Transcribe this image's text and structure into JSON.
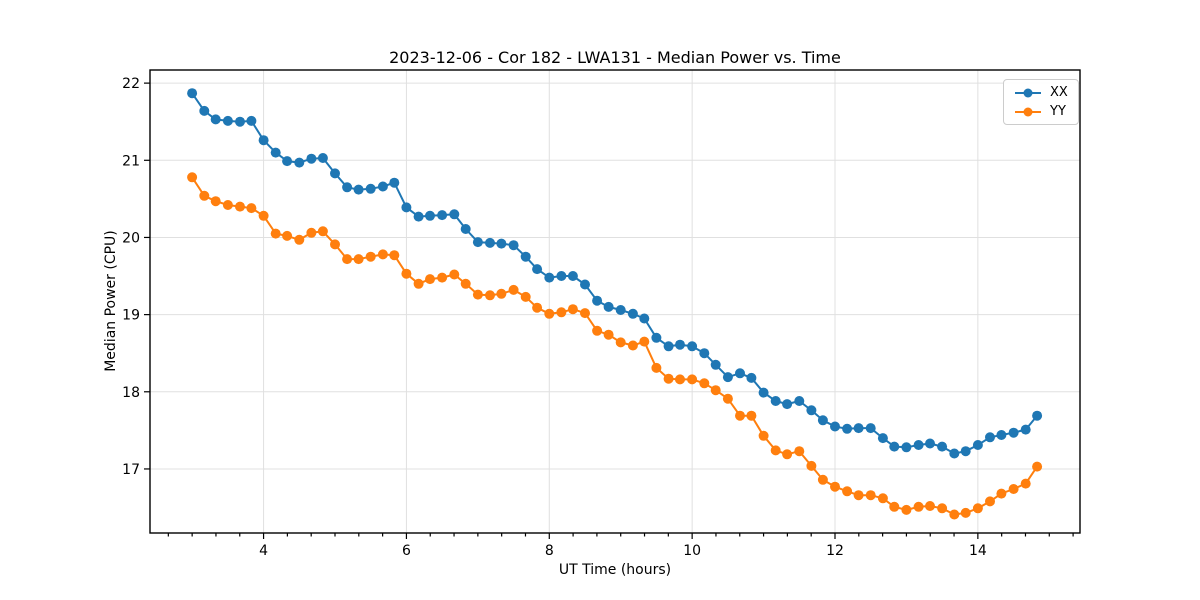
{
  "chart_data": {
    "type": "line",
    "title": "2023-12-06 - Cor 182 - LWA131 - Median Power vs. Time",
    "xlabel": "UT Time (hours)",
    "ylabel": "Median Power (CPU)",
    "xlim": [
      2.41,
      15.43
    ],
    "ylim": [
      16.17,
      22.17
    ],
    "xticks": [
      4,
      6,
      8,
      10,
      12,
      14
    ],
    "yticks": [
      17,
      18,
      19,
      20,
      21,
      22
    ],
    "x_minor_tick_step": 0.3333,
    "grid": true,
    "legend_position": "upper right",
    "marker": "circle",
    "x": [
      3.0,
      3.17,
      3.33,
      3.5,
      3.67,
      3.83,
      4.0,
      4.17,
      4.33,
      4.5,
      4.67,
      4.83,
      5.0,
      5.17,
      5.33,
      5.5,
      5.67,
      5.83,
      6.0,
      6.17,
      6.33,
      6.5,
      6.67,
      6.83,
      7.0,
      7.17,
      7.33,
      7.5,
      7.67,
      7.83,
      8.0,
      8.17,
      8.33,
      8.5,
      8.67,
      8.83,
      9.0,
      9.17,
      9.33,
      9.5,
      9.67,
      9.83,
      10.0,
      10.17,
      10.33,
      10.5,
      10.67,
      10.83,
      11.0,
      11.17,
      11.33,
      11.5,
      11.67,
      11.83,
      12.0,
      12.17,
      12.33,
      12.5,
      12.67,
      12.83,
      13.0,
      13.17,
      13.33,
      13.5,
      13.67,
      13.83,
      14.0,
      14.17,
      14.33,
      14.5,
      14.67,
      14.83
    ],
    "series": [
      {
        "name": "XX",
        "color": "#1f77b4",
        "values": [
          21.87,
          21.64,
          21.53,
          21.51,
          21.5,
          21.51,
          21.26,
          21.1,
          20.99,
          20.97,
          21.02,
          21.03,
          20.83,
          20.65,
          20.62,
          20.63,
          20.66,
          20.71,
          20.39,
          20.27,
          20.28,
          20.29,
          20.3,
          20.11,
          19.94,
          19.93,
          19.92,
          19.9,
          19.75,
          19.59,
          19.48,
          19.5,
          19.5,
          19.39,
          19.18,
          19.1,
          19.06,
          19.01,
          18.95,
          18.7,
          18.59,
          18.61,
          18.59,
          18.5,
          18.35,
          18.19,
          18.24,
          18.18,
          17.99,
          17.88,
          17.84,
          17.88,
          17.76,
          17.63,
          17.55,
          17.52,
          17.53,
          17.53,
          17.4,
          17.29,
          17.28,
          17.31,
          17.33,
          17.29,
          17.2,
          17.23,
          17.31,
          17.41,
          17.44,
          17.47,
          17.51,
          17.69
        ]
      },
      {
        "name": "YY",
        "color": "#ff7f0e",
        "values": [
          20.78,
          20.54,
          20.47,
          20.42,
          20.4,
          20.38,
          20.28,
          20.05,
          20.02,
          19.97,
          20.06,
          20.08,
          19.91,
          19.72,
          19.72,
          19.75,
          19.78,
          19.77,
          19.53,
          19.4,
          19.46,
          19.48,
          19.52,
          19.4,
          19.26,
          19.25,
          19.27,
          19.32,
          19.23,
          19.09,
          19.01,
          19.03,
          19.07,
          19.02,
          18.79,
          18.74,
          18.64,
          18.6,
          18.65,
          18.31,
          18.17,
          18.16,
          18.16,
          18.11,
          18.02,
          17.91,
          17.69,
          17.69,
          17.43,
          17.24,
          17.19,
          17.23,
          17.04,
          16.86,
          16.77,
          16.71,
          16.66,
          16.66,
          16.62,
          16.51,
          16.47,
          16.51,
          16.52,
          16.49,
          16.41,
          16.43,
          16.49,
          16.58,
          16.68,
          16.74,
          16.81,
          17.03
        ]
      }
    ],
    "style": {
      "grid_color": "#e0e0e0",
      "spine_color": "#000000",
      "tick_label_color": "#000000",
      "background": "#ffffff"
    }
  }
}
